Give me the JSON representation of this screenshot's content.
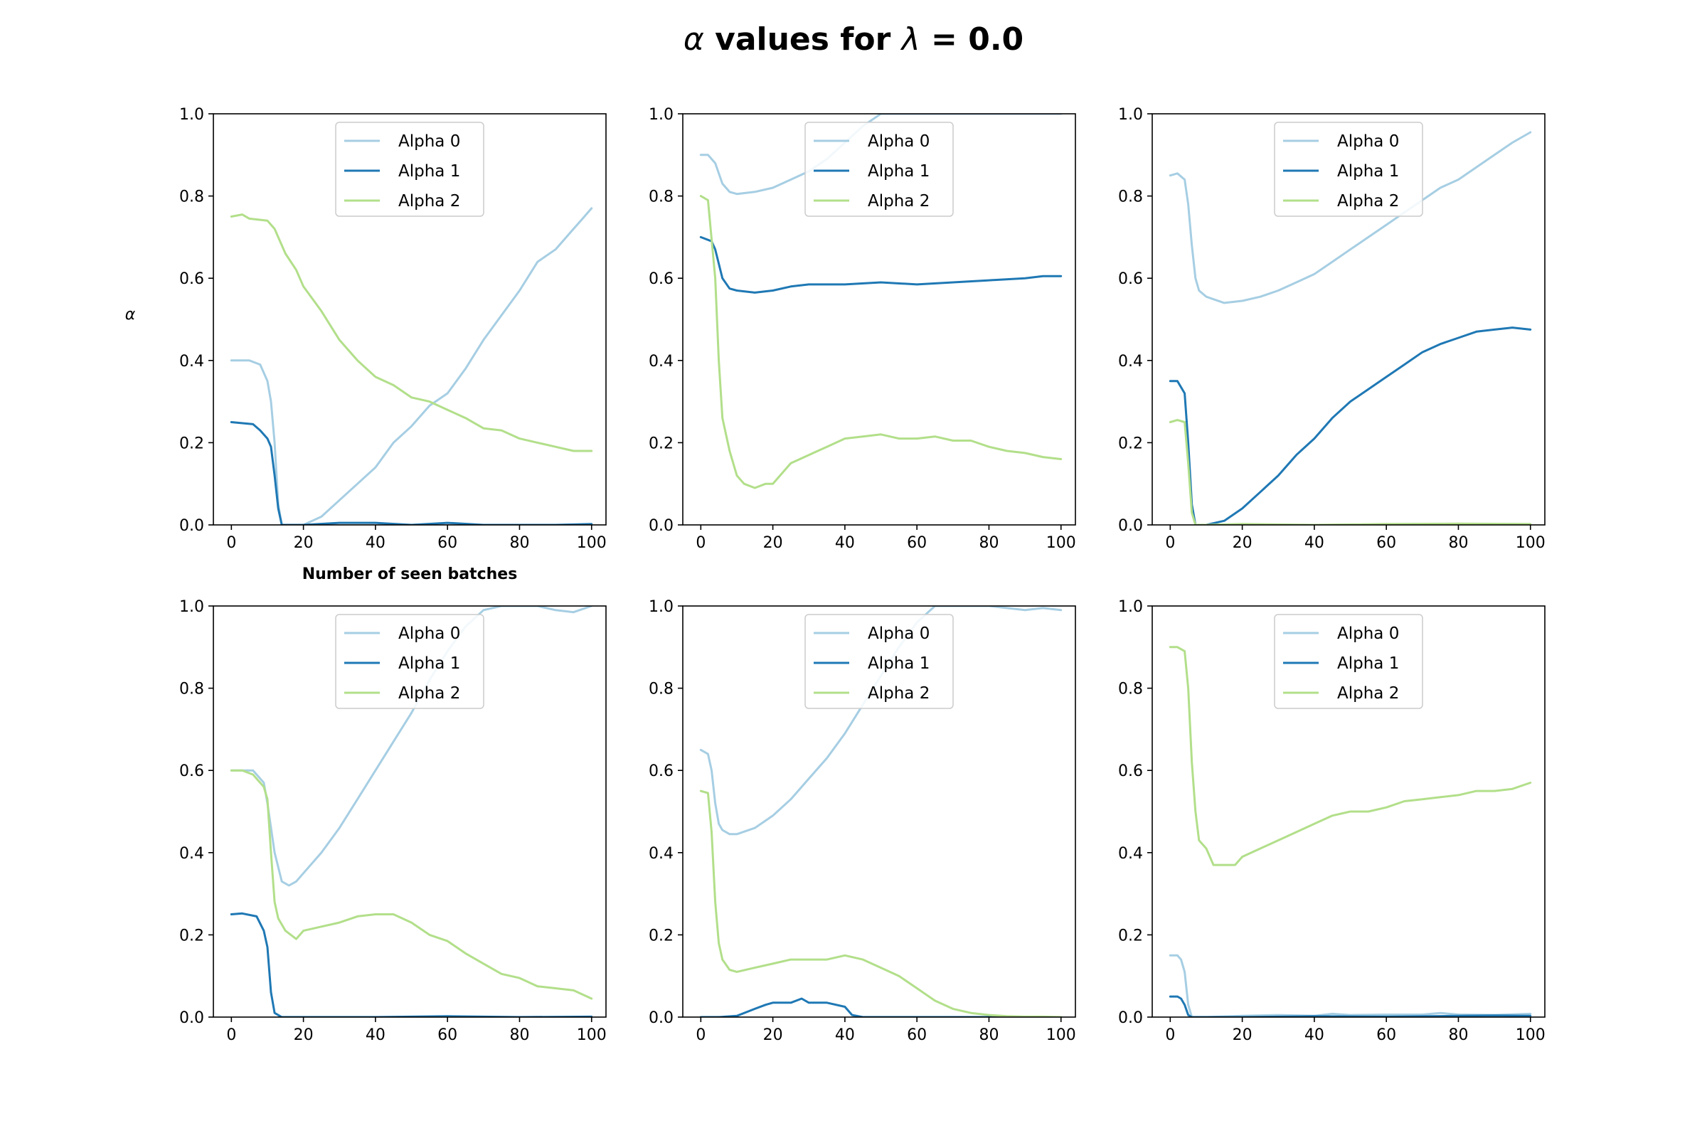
{
  "figure": {
    "title_prefix": "α",
    "title_mid": " values for ",
    "title_lambda": "λ",
    "title_suffix": " = 0.0"
  },
  "colors": {
    "alpha0": "#a6cee3",
    "alpha1": "#1f78b4",
    "alpha2": "#b2df8a"
  },
  "chart_data": [
    {
      "type": "line",
      "xlim": [
        -5,
        104
      ],
      "ylim": [
        0,
        1
      ],
      "grid": false,
      "legend": "upper center",
      "xticks": [
        0,
        20,
        40,
        60,
        80,
        100
      ],
      "yticks": [
        0.0,
        0.2,
        0.4,
        0.6,
        0.8,
        1.0
      ],
      "xlabel": "Number of seen batches",
      "ylabel": "α",
      "series": [
        {
          "name": "Alpha 0",
          "x": [
            0,
            5,
            8,
            10,
            11,
            12,
            13,
            14,
            20,
            25,
            30,
            35,
            40,
            45,
            50,
            55,
            60,
            65,
            70,
            75,
            80,
            85,
            90,
            95,
            97,
            100
          ],
          "y": [
            0.4,
            0.4,
            0.39,
            0.35,
            0.3,
            0.2,
            0.05,
            0,
            0,
            0.02,
            0.06,
            0.1,
            0.14,
            0.2,
            0.24,
            0.29,
            0.32,
            0.38,
            0.45,
            0.51,
            0.57,
            0.64,
            0.67,
            0.72,
            0.74,
            0.77
          ]
        },
        {
          "name": "Alpha 1",
          "x": [
            0,
            6,
            8,
            10,
            11,
            12,
            13,
            14,
            20,
            30,
            40,
            50,
            60,
            70,
            80,
            90,
            100
          ],
          "y": [
            0.25,
            0.245,
            0.23,
            0.21,
            0.19,
            0.12,
            0.04,
            0,
            0,
            0.005,
            0.005,
            0,
            0.005,
            0,
            0,
            0,
            0.002
          ]
        },
        {
          "name": "Alpha 2",
          "x": [
            0,
            3,
            5,
            10,
            12,
            15,
            18,
            20,
            25,
            30,
            35,
            40,
            45,
            50,
            55,
            60,
            65,
            70,
            75,
            80,
            85,
            90,
            95,
            100
          ],
          "y": [
            0.75,
            0.755,
            0.745,
            0.74,
            0.72,
            0.66,
            0.62,
            0.58,
            0.52,
            0.45,
            0.4,
            0.36,
            0.34,
            0.31,
            0.3,
            0.28,
            0.26,
            0.235,
            0.23,
            0.21,
            0.2,
            0.19,
            0.18,
            0.18
          ]
        }
      ]
    },
    {
      "type": "line",
      "xlim": [
        -5,
        104
      ],
      "ylim": [
        0,
        1
      ],
      "grid": false,
      "legend": "upper center",
      "xticks": [
        0,
        20,
        40,
        60,
        80,
        100
      ],
      "yticks": [
        0.0,
        0.2,
        0.4,
        0.6,
        0.8,
        1.0
      ],
      "series": [
        {
          "name": "Alpha 0",
          "x": [
            0,
            2,
            4,
            6,
            8,
            10,
            15,
            20,
            25,
            30,
            35,
            40,
            45,
            50,
            60,
            70,
            80,
            90,
            100
          ],
          "y": [
            0.9,
            0.9,
            0.88,
            0.83,
            0.81,
            0.805,
            0.81,
            0.82,
            0.84,
            0.86,
            0.89,
            0.93,
            0.97,
            1.0,
            1.0,
            1.0,
            1.0,
            1.0,
            1.0
          ]
        },
        {
          "name": "Alpha 1",
          "x": [
            0,
            3,
            4,
            6,
            8,
            10,
            15,
            20,
            25,
            30,
            40,
            50,
            60,
            70,
            80,
            90,
            95,
            100
          ],
          "y": [
            0.7,
            0.69,
            0.67,
            0.6,
            0.575,
            0.57,
            0.565,
            0.57,
            0.58,
            0.585,
            0.585,
            0.59,
            0.585,
            0.59,
            0.595,
            0.6,
            0.605,
            0.605
          ]
        },
        {
          "name": "Alpha 2",
          "x": [
            0,
            2,
            4,
            5,
            6,
            8,
            10,
            12,
            15,
            18,
            20,
            25,
            30,
            35,
            40,
            45,
            50,
            55,
            60,
            65,
            70,
            75,
            80,
            85,
            90,
            95,
            100
          ],
          "y": [
            0.8,
            0.79,
            0.6,
            0.4,
            0.26,
            0.18,
            0.12,
            0.1,
            0.09,
            0.1,
            0.1,
            0.15,
            0.17,
            0.19,
            0.21,
            0.215,
            0.22,
            0.21,
            0.21,
            0.215,
            0.205,
            0.205,
            0.19,
            0.18,
            0.175,
            0.165,
            0.16
          ]
        }
      ]
    },
    {
      "type": "line",
      "xlim": [
        -5,
        104
      ],
      "ylim": [
        0,
        1
      ],
      "grid": false,
      "legend": "upper center",
      "xticks": [
        0,
        20,
        40,
        60,
        80,
        100
      ],
      "yticks": [
        0.0,
        0.2,
        0.4,
        0.6,
        0.8,
        1.0
      ],
      "series": [
        {
          "name": "Alpha 0",
          "x": [
            0,
            2,
            4,
            5,
            6,
            7,
            8,
            10,
            15,
            20,
            25,
            30,
            35,
            40,
            45,
            50,
            55,
            60,
            65,
            70,
            75,
            80,
            85,
            90,
            95,
            100
          ],
          "y": [
            0.85,
            0.855,
            0.84,
            0.78,
            0.68,
            0.6,
            0.57,
            0.555,
            0.54,
            0.545,
            0.555,
            0.57,
            0.59,
            0.61,
            0.64,
            0.67,
            0.7,
            0.73,
            0.76,
            0.79,
            0.82,
            0.84,
            0.87,
            0.9,
            0.93,
            0.955
          ]
        },
        {
          "name": "Alpha 1",
          "x": [
            0,
            2,
            4,
            5,
            6,
            7,
            8,
            10,
            15,
            20,
            25,
            30,
            35,
            40,
            45,
            50,
            55,
            60,
            65,
            70,
            75,
            80,
            85,
            90,
            95,
            100
          ],
          "y": [
            0.35,
            0.35,
            0.32,
            0.2,
            0.05,
            0,
            0,
            0,
            0.01,
            0.04,
            0.08,
            0.12,
            0.17,
            0.21,
            0.26,
            0.3,
            0.33,
            0.36,
            0.39,
            0.42,
            0.44,
            0.455,
            0.47,
            0.475,
            0.48,
            0.475
          ]
        },
        {
          "name": "Alpha 2",
          "x": [
            0,
            2,
            4,
            5,
            6,
            7,
            10,
            20,
            40,
            60,
            80,
            100
          ],
          "y": [
            0.25,
            0.255,
            0.25,
            0.15,
            0.03,
            0,
            0,
            0.002,
            0,
            0.002,
            0.003,
            0.002
          ]
        }
      ]
    },
    {
      "type": "line",
      "xlim": [
        -5,
        104
      ],
      "ylim": [
        0,
        1
      ],
      "grid": false,
      "legend": "upper center",
      "xticks": [
        0,
        20,
        40,
        60,
        80,
        100
      ],
      "yticks": [
        0.0,
        0.2,
        0.4,
        0.6,
        0.8,
        1.0
      ],
      "series": [
        {
          "name": "Alpha 0",
          "x": [
            0,
            3,
            6,
            9,
            10,
            12,
            14,
            16,
            18,
            20,
            25,
            30,
            35,
            40,
            45,
            50,
            55,
            60,
            65,
            70,
            75,
            80,
            85,
            90,
            95,
            100
          ],
          "y": [
            0.6,
            0.6,
            0.6,
            0.57,
            0.52,
            0.4,
            0.33,
            0.32,
            0.33,
            0.35,
            0.4,
            0.46,
            0.53,
            0.6,
            0.67,
            0.74,
            0.82,
            0.89,
            0.95,
            0.99,
            1.0,
            1.0,
            1.0,
            0.99,
            0.985,
            1.0
          ]
        },
        {
          "name": "Alpha 1",
          "x": [
            0,
            3,
            7,
            9,
            10,
            11,
            12,
            14,
            20,
            40,
            60,
            80,
            100
          ],
          "y": [
            0.25,
            0.252,
            0.245,
            0.21,
            0.17,
            0.06,
            0.01,
            0,
            0,
            0,
            0.002,
            0,
            0.001
          ]
        },
        {
          "name": "Alpha 2",
          "x": [
            0,
            3,
            6,
            9,
            10,
            11,
            12,
            13,
            15,
            18,
            20,
            25,
            30,
            35,
            40,
            45,
            50,
            55,
            60,
            65,
            70,
            75,
            80,
            85,
            90,
            95,
            100
          ],
          "y": [
            0.6,
            0.6,
            0.59,
            0.56,
            0.53,
            0.4,
            0.28,
            0.24,
            0.21,
            0.19,
            0.21,
            0.22,
            0.23,
            0.245,
            0.25,
            0.25,
            0.23,
            0.2,
            0.185,
            0.155,
            0.13,
            0.105,
            0.095,
            0.075,
            0.07,
            0.065,
            0.045
          ]
        }
      ]
    },
    {
      "type": "line",
      "xlim": [
        -5,
        104
      ],
      "ylim": [
        0,
        1
      ],
      "grid": false,
      "legend": "upper center",
      "xticks": [
        0,
        20,
        40,
        60,
        80,
        100
      ],
      "yticks": [
        0.0,
        0.2,
        0.4,
        0.6,
        0.8,
        1.0
      ],
      "series": [
        {
          "name": "Alpha 0",
          "x": [
            0,
            2,
            3,
            4,
            5,
            6,
            8,
            10,
            15,
            20,
            25,
            30,
            35,
            40,
            45,
            50,
            55,
            60,
            65,
            70,
            75,
            80,
            85,
            90,
            95,
            100
          ],
          "y": [
            0.65,
            0.64,
            0.6,
            0.52,
            0.47,
            0.455,
            0.445,
            0.445,
            0.46,
            0.49,
            0.53,
            0.58,
            0.63,
            0.69,
            0.76,
            0.83,
            0.9,
            0.96,
            1.0,
            1.0,
            1.0,
            1.0,
            0.995,
            0.99,
            0.995,
            0.99
          ]
        },
        {
          "name": "Alpha 1",
          "x": [
            0,
            5,
            10,
            15,
            18,
            20,
            25,
            28,
            30,
            35,
            40,
            42,
            45,
            50,
            60,
            80,
            100
          ],
          "y": [
            0,
            0,
            0.003,
            0.02,
            0.03,
            0.035,
            0.035,
            0.045,
            0.035,
            0.035,
            0.025,
            0.005,
            0,
            0,
            0,
            0,
            0
          ]
        },
        {
          "name": "Alpha 2",
          "x": [
            0,
            2,
            3,
            4,
            5,
            6,
            8,
            10,
            15,
            20,
            25,
            30,
            35,
            40,
            45,
            50,
            55,
            60,
            65,
            70,
            75,
            80,
            85,
            90,
            95,
            100
          ],
          "y": [
            0.55,
            0.545,
            0.45,
            0.28,
            0.18,
            0.14,
            0.115,
            0.11,
            0.12,
            0.13,
            0.14,
            0.14,
            0.14,
            0.15,
            0.14,
            0.12,
            0.1,
            0.07,
            0.04,
            0.02,
            0.01,
            0.005,
            0.002,
            0.001,
            0.001,
            0
          ]
        }
      ]
    },
    {
      "type": "line",
      "xlim": [
        -5,
        104
      ],
      "ylim": [
        0,
        1
      ],
      "grid": false,
      "legend": "upper center",
      "xticks": [
        0,
        20,
        40,
        60,
        80,
        100
      ],
      "yticks": [
        0.0,
        0.2,
        0.4,
        0.6,
        0.8,
        1.0
      ],
      "series": [
        {
          "name": "Alpha 0",
          "x": [
            0,
            2,
            3,
            4,
            5,
            6,
            7,
            10,
            20,
            30,
            40,
            45,
            50,
            60,
            70,
            75,
            80,
            90,
            100
          ],
          "y": [
            0.15,
            0.15,
            0.14,
            0.11,
            0.03,
            0,
            0,
            0,
            0.003,
            0.005,
            0.003,
            0.008,
            0.005,
            0.006,
            0.006,
            0.01,
            0.006,
            0.005,
            0.008
          ]
        },
        {
          "name": "Alpha 1",
          "x": [
            0,
            2,
            3,
            4,
            5,
            6,
            7,
            10,
            20,
            40,
            60,
            80,
            90,
            100
          ],
          "y": [
            0.05,
            0.05,
            0.045,
            0.03,
            0.005,
            0,
            0,
            0,
            0,
            0.002,
            0.001,
            0.003,
            0.004,
            0.003
          ]
        },
        {
          "name": "Alpha 2",
          "x": [
            0,
            2,
            4,
            5,
            6,
            7,
            8,
            10,
            12,
            15,
            18,
            20,
            25,
            30,
            35,
            40,
            45,
            50,
            55,
            60,
            65,
            70,
            75,
            80,
            85,
            90,
            95,
            100
          ],
          "y": [
            0.9,
            0.9,
            0.89,
            0.8,
            0.62,
            0.5,
            0.43,
            0.41,
            0.37,
            0.37,
            0.37,
            0.39,
            0.41,
            0.43,
            0.45,
            0.47,
            0.49,
            0.5,
            0.5,
            0.51,
            0.525,
            0.53,
            0.535,
            0.54,
            0.55,
            0.55,
            0.555,
            0.57
          ]
        }
      ]
    }
  ]
}
